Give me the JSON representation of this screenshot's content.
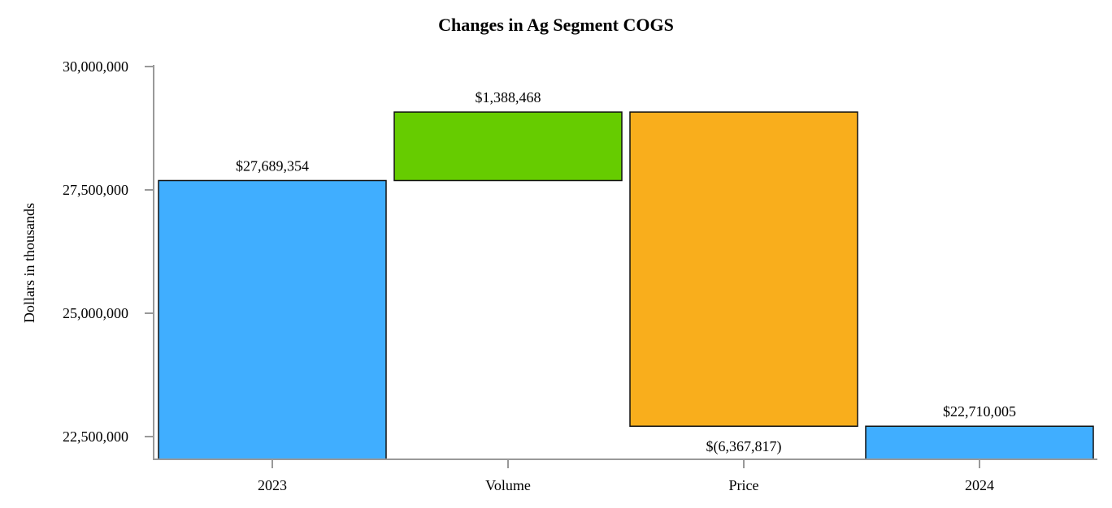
{
  "chart_data": {
    "type": "waterfall",
    "title": "Changes in Ag Segment COGS",
    "xlabel": "",
    "ylabel": "Dollars in thousands",
    "ylim": [
      22040000,
      30000000
    ],
    "yticks": [
      22500000,
      25000000,
      27500000,
      30000000
    ],
    "ytick_labels": [
      "22,500,000",
      "25,000,000",
      "27,500,000",
      "30,000,000"
    ],
    "grid": false,
    "categories": [
      "2023",
      "Volume",
      "Price",
      "2024"
    ],
    "bars": [
      {
        "category": "2023",
        "kind": "total",
        "value": 27689354,
        "label": "$27,689,354",
        "color": "#40AEFF"
      },
      {
        "category": "Volume",
        "kind": "delta",
        "value": 1388468,
        "label": "$1,388,468",
        "color": "#66CC00"
      },
      {
        "category": "Price",
        "kind": "delta",
        "value": -6367817,
        "label": "$(6,367,817)",
        "color": "#F9AE1C"
      },
      {
        "category": "2024",
        "kind": "total",
        "value": 22710005,
        "label": "$22,710,005",
        "color": "#40AEFF"
      }
    ]
  }
}
